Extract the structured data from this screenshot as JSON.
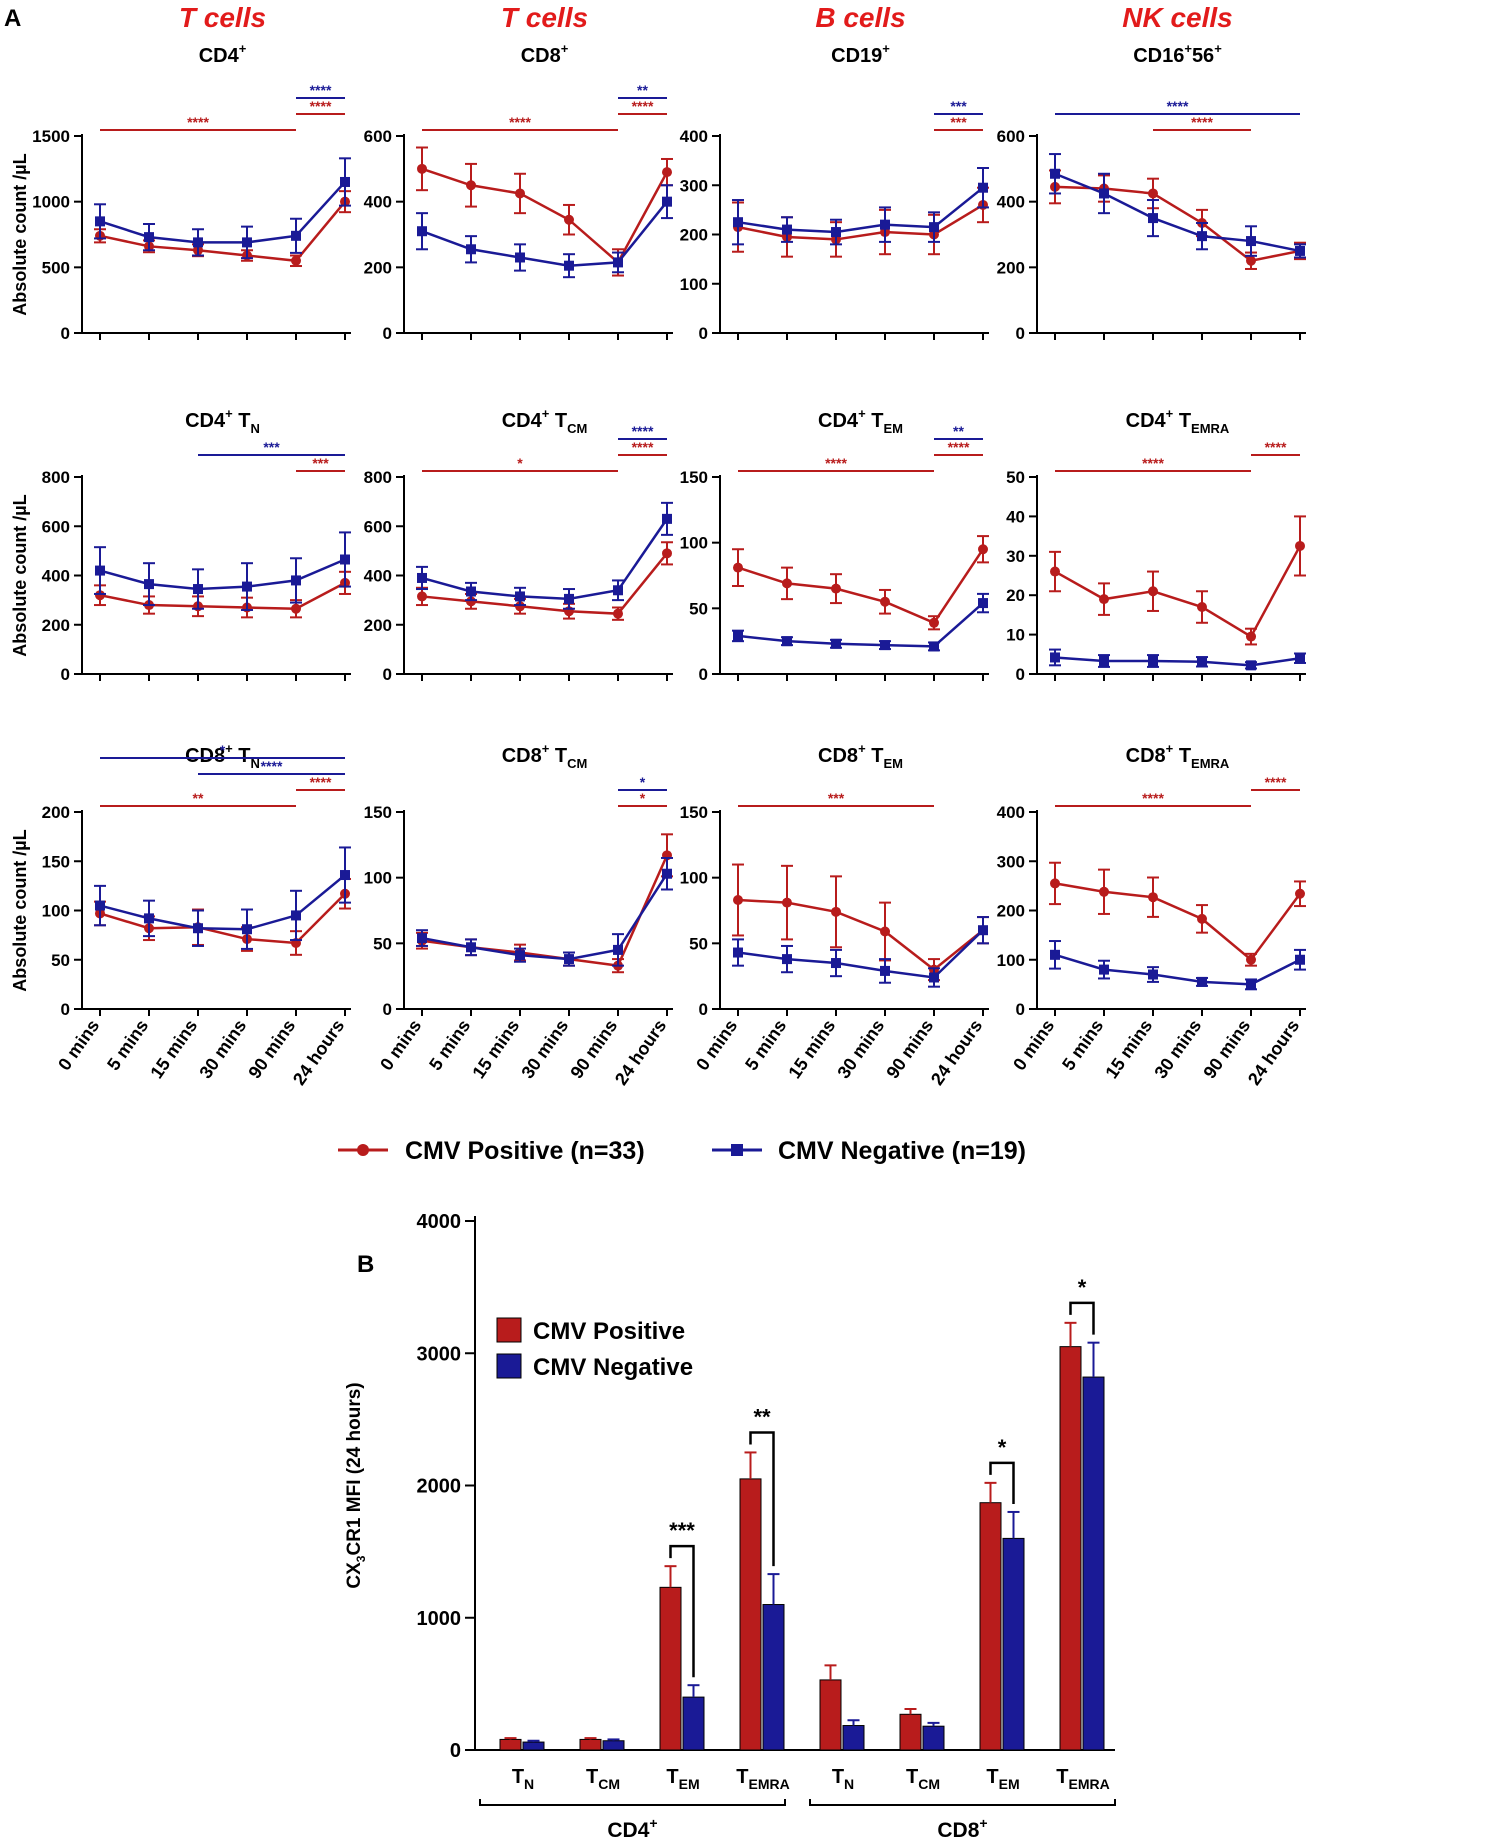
{
  "panel_labels": {
    "a": "A",
    "b": "B"
  },
  "y_axis_label_a": "Absolute count /µL",
  "x_categories": [
    "0 mins",
    "5 mins",
    "15 mins",
    "30 mins",
    "90 mins",
    "24 hours"
  ],
  "legend_a": {
    "positive": "CMV Positive (n=33)",
    "negative": "CMV Negative (n=19)"
  },
  "colors": {
    "positive": "#b81c1c",
    "negative": "#1a1a96",
    "header": "#e21b1b"
  },
  "chart_data": [
    {
      "type": "line",
      "header": "T cells",
      "title": "CD4",
      "sup": "+",
      "sub": "",
      "ylim": [
        0,
        1500
      ],
      "yticks": [
        0,
        500,
        1000,
        1500
      ],
      "showX": false,
      "showYLabel": true,
      "series": [
        {
          "name": "CMV Positive (n=33)",
          "values": [
            740,
            660,
            630,
            590,
            550,
            1000
          ],
          "err": [
            50,
            45,
            45,
            40,
            40,
            80
          ]
        },
        {
          "name": "CMV Negative (n=19)",
          "values": [
            850,
            730,
            690,
            690,
            740,
            1150
          ],
          "err": [
            130,
            100,
            100,
            120,
            130,
            180
          ]
        }
      ],
      "brackets": [
        {
          "from": 0,
          "to": 4,
          "label": "****",
          "color": "positive"
        },
        {
          "from": 4,
          "to": 5,
          "label": "****",
          "color": "positive"
        },
        {
          "from": 4,
          "to": 5,
          "label": "****",
          "color": "negative"
        }
      ]
    },
    {
      "type": "line",
      "header": "T cells",
      "title": "CD8",
      "sup": "+",
      "sub": "",
      "ylim": [
        0,
        600
      ],
      "yticks": [
        0,
        200,
        400,
        600
      ],
      "showX": false,
      "showYLabel": false,
      "series": [
        {
          "name": "CMV Positive (n=33)",
          "values": [
            500,
            450,
            425,
            345,
            215,
            490
          ],
          "err": [
            65,
            65,
            60,
            45,
            40,
            40
          ]
        },
        {
          "name": "CMV Negative (n=19)",
          "values": [
            310,
            255,
            230,
            205,
            215,
            400
          ],
          "err": [
            55,
            40,
            40,
            35,
            30,
            50
          ]
        }
      ],
      "brackets": [
        {
          "from": 0,
          "to": 4,
          "label": "****",
          "color": "positive"
        },
        {
          "from": 4,
          "to": 5,
          "label": "****",
          "color": "positive"
        },
        {
          "from": 4,
          "to": 5,
          "label": "**",
          "color": "negative"
        }
      ]
    },
    {
      "type": "line",
      "header": "B cells",
      "title": "CD19",
      "sup": "+",
      "sub": "",
      "ylim": [
        0,
        400
      ],
      "yticks": [
        0,
        100,
        200,
        300,
        400
      ],
      "showX": false,
      "showYLabel": false,
      "series": [
        {
          "name": "CMV Positive (n=33)",
          "values": [
            215,
            195,
            190,
            205,
            200,
            260
          ],
          "err": [
            50,
            40,
            35,
            45,
            40,
            35
          ]
        },
        {
          "name": "CMV Negative (n=19)",
          "values": [
            225,
            210,
            205,
            220,
            215,
            295
          ],
          "err": [
            45,
            25,
            25,
            35,
            30,
            40
          ]
        }
      ],
      "brackets": [
        {
          "from": 4,
          "to": 5,
          "label": "***",
          "color": "positive"
        },
        {
          "from": 4,
          "to": 5,
          "label": "***",
          "color": "negative"
        }
      ]
    },
    {
      "type": "line",
      "header": "NK cells",
      "title": "CD16",
      "sup": "+",
      "sup2": "56+",
      "sub": "",
      "ylim": [
        0,
        600
      ],
      "yticks": [
        0,
        200,
        400,
        600
      ],
      "showX": false,
      "showYLabel": false,
      "series": [
        {
          "name": "CMV Positive (n=33)",
          "values": [
            445,
            440,
            425,
            335,
            220,
            250
          ],
          "err": [
            50,
            40,
            45,
            40,
            25,
            25
          ]
        },
        {
          "name": "CMV Negative (n=19)",
          "values": [
            485,
            425,
            350,
            295,
            280,
            250
          ],
          "err": [
            60,
            60,
            55,
            40,
            45,
            20
          ]
        }
      ],
      "brackets": [
        {
          "from": 2,
          "to": 4,
          "label": "****",
          "color": "positive"
        },
        {
          "from": 0,
          "to": 5,
          "label": "****",
          "color": "negative"
        }
      ]
    },
    {
      "type": "line",
      "header": "",
      "title": "CD4",
      "sup": "+",
      "sub": "N",
      "ylim": [
        0,
        800
      ],
      "yticks": [
        0,
        200,
        400,
        600,
        800
      ],
      "showX": false,
      "showYLabel": true,
      "series": [
        {
          "name": "CMV Positive (n=33)",
          "values": [
            320,
            280,
            275,
            270,
            265,
            370
          ],
          "err": [
            40,
            35,
            40,
            40,
            35,
            45
          ]
        },
        {
          "name": "CMV Negative (n=19)",
          "values": [
            420,
            365,
            345,
            355,
            380,
            465
          ],
          "err": [
            95,
            85,
            80,
            95,
            90,
            110
          ]
        }
      ],
      "brackets": [
        {
          "from": 4,
          "to": 5,
          "label": "***",
          "color": "positive"
        },
        {
          "from": 2,
          "to": 5,
          "label": "***",
          "color": "negative"
        }
      ]
    },
    {
      "type": "line",
      "header": "",
      "title": "CD4",
      "sup": "+",
      "sub": "CM",
      "ylim": [
        0,
        800
      ],
      "yticks": [
        0,
        200,
        400,
        600,
        800
      ],
      "showX": false,
      "showYLabel": false,
      "series": [
        {
          "name": "CMV Positive (n=33)",
          "values": [
            315,
            295,
            275,
            255,
            245,
            490
          ],
          "err": [
            35,
            30,
            30,
            30,
            25,
            45
          ]
        },
        {
          "name": "CMV Negative (n=19)",
          "values": [
            390,
            335,
            315,
            305,
            340,
            630
          ],
          "err": [
            45,
            35,
            35,
            40,
            40,
            65
          ]
        }
      ],
      "brackets": [
        {
          "from": 0,
          "to": 4,
          "label": "*",
          "color": "positive"
        },
        {
          "from": 4,
          "to": 5,
          "label": "****",
          "color": "positive"
        },
        {
          "from": 4,
          "to": 5,
          "label": "****",
          "color": "negative"
        }
      ]
    },
    {
      "type": "line",
      "header": "",
      "title": "CD4",
      "sup": "+",
      "sub": "EM",
      "ylim": [
        0,
        150
      ],
      "yticks": [
        0,
        50,
        100,
        150
      ],
      "showX": false,
      "showYLabel": false,
      "series": [
        {
          "name": "CMV Positive (n=33)",
          "values": [
            81,
            69,
            65,
            55,
            39,
            95
          ],
          "err": [
            14,
            12,
            11,
            9,
            5,
            10
          ]
        },
        {
          "name": "CMV Negative (n=19)",
          "values": [
            29,
            25,
            23,
            22,
            21,
            54
          ],
          "err": [
            4,
            3,
            3,
            3,
            3,
            7
          ]
        }
      ],
      "brackets": [
        {
          "from": 0,
          "to": 4,
          "label": "****",
          "color": "positive"
        },
        {
          "from": 4,
          "to": 5,
          "label": "****",
          "color": "positive"
        },
        {
          "from": 4,
          "to": 5,
          "label": "**",
          "color": "negative"
        }
      ]
    },
    {
      "type": "line",
      "header": "",
      "title": "CD4",
      "sup": "+",
      "sub": "EMRA",
      "ylim": [
        0,
        50
      ],
      "yticks": [
        0,
        10,
        20,
        30,
        40,
        50
      ],
      "showX": false,
      "showYLabel": false,
      "series": [
        {
          "name": "CMV Positive (n=33)",
          "values": [
            26,
            19,
            21,
            17,
            9.5,
            32.5
          ],
          "err": [
            5,
            4,
            5,
            4,
            2,
            7.5
          ]
        },
        {
          "name": "CMV Negative (n=19)",
          "values": [
            4.2,
            3.3,
            3.3,
            3.1,
            2.2,
            4.0
          ],
          "err": [
            2,
            1.5,
            1.5,
            1.2,
            0.8,
            1.2
          ]
        }
      ],
      "brackets": [
        {
          "from": 0,
          "to": 4,
          "label": "****",
          "color": "positive"
        },
        {
          "from": 4,
          "to": 5,
          "label": "****",
          "color": "positive"
        }
      ]
    },
    {
      "type": "line",
      "header": "",
      "title": "CD8",
      "sup": "+",
      "sub": "N",
      "ylim": [
        0,
        200
      ],
      "yticks": [
        0,
        50,
        100,
        150,
        200
      ],
      "showX": true,
      "showYLabel": true,
      "series": [
        {
          "name": "CMV Positive (n=33)",
          "values": [
            97,
            82,
            83,
            71,
            67,
            117
          ],
          "err": [
            12,
            12,
            18,
            12,
            12,
            15
          ]
        },
        {
          "name": "CMV Negative (n=19)",
          "values": [
            105,
            92,
            82,
            81,
            95,
            136
          ],
          "err": [
            20,
            18,
            18,
            20,
            25,
            28
          ]
        }
      ],
      "brackets": [
        {
          "from": 0,
          "to": 4,
          "label": "**",
          "color": "positive"
        },
        {
          "from": 4,
          "to": 5,
          "label": "****",
          "color": "positive"
        },
        {
          "from": 2,
          "to": 5,
          "label": "****",
          "color": "negative"
        },
        {
          "from": 0,
          "to": 5,
          "label": "*",
          "color": "negative"
        }
      ]
    },
    {
      "type": "line",
      "header": "",
      "title": "CD8",
      "sup": "+",
      "sub": "CM",
      "ylim": [
        0,
        150
      ],
      "yticks": [
        0,
        50,
        100,
        150
      ],
      "showX": true,
      "showYLabel": false,
      "series": [
        {
          "name": "CMV Positive (n=33)",
          "values": [
            52,
            47,
            43,
            38,
            33,
            117
          ],
          "err": [
            6,
            6,
            6,
            5,
            5,
            16
          ]
        },
        {
          "name": "CMV Negative (n=19)",
          "values": [
            54,
            47,
            41,
            38,
            45,
            103
          ],
          "err": [
            6,
            6,
            5,
            5,
            12,
            12
          ]
        }
      ],
      "brackets": [
        {
          "from": 4,
          "to": 5,
          "label": "*",
          "color": "positive"
        },
        {
          "from": 4,
          "to": 5,
          "label": "*",
          "color": "negative"
        }
      ]
    },
    {
      "type": "line",
      "header": "",
      "title": "CD8",
      "sup": "+",
      "sub": "EM",
      "ylim": [
        0,
        150
      ],
      "yticks": [
        0,
        50,
        100,
        150
      ],
      "showX": true,
      "showYLabel": false,
      "series": [
        {
          "name": "CMV Positive (n=33)",
          "values": [
            83,
            81,
            74,
            59,
            30,
            60
          ],
          "err": [
            27,
            28,
            27,
            22,
            8,
            10
          ]
        },
        {
          "name": "CMV Negative (n=19)",
          "values": [
            43,
            38,
            35,
            29,
            24,
            60
          ],
          "err": [
            10,
            10,
            10,
            9,
            7,
            10
          ]
        }
      ],
      "brackets": [
        {
          "from": 0,
          "to": 4,
          "label": "***",
          "color": "positive"
        }
      ]
    },
    {
      "type": "line",
      "header": "",
      "title": "CD8",
      "sup": "+",
      "sub": "EMRA",
      "ylim": [
        0,
        400
      ],
      "yticks": [
        0,
        100,
        200,
        300,
        400
      ],
      "showX": true,
      "showYLabel": false,
      "series": [
        {
          "name": "CMV Positive (n=33)",
          "values": [
            255,
            238,
            227,
            183,
            100,
            234
          ],
          "err": [
            42,
            45,
            40,
            28,
            12,
            25
          ]
        },
        {
          "name": "CMV Negative (n=19)",
          "values": [
            110,
            80,
            70,
            55,
            50,
            100
          ],
          "err": [
            28,
            18,
            15,
            8,
            10,
            20
          ]
        }
      ],
      "brackets": [
        {
          "from": 0,
          "to": 4,
          "label": "****",
          "color": "positive"
        },
        {
          "from": 4,
          "to": 5,
          "label": "****",
          "color": "positive"
        }
      ]
    },
    {
      "type": "bar",
      "title": "B",
      "ylabel": "CX3CR1 MFI (24 hours)",
      "ylim": [
        0,
        4000
      ],
      "yticks": [
        0,
        1000,
        2000,
        3000,
        4000
      ],
      "legend": [
        "CMV Positive",
        "CMV Negative"
      ],
      "groups": [
        {
          "label": "T",
          "sub": "N",
          "pos": 80,
          "neg": 60,
          "pos_err": 10,
          "neg_err": 10
        },
        {
          "label": "T",
          "sub": "CM",
          "pos": 80,
          "neg": 70,
          "pos_err": 10,
          "neg_err": 10
        },
        {
          "label": "T",
          "sub": "EM",
          "pos": 1230,
          "neg": 400,
          "pos_err": 160,
          "neg_err": 90,
          "sig": "***"
        },
        {
          "label": "T",
          "sub": "EMRA",
          "pos": 2050,
          "neg": 1100,
          "pos_err": 200,
          "neg_err": 230,
          "sig": "**"
        },
        {
          "label": "T",
          "sub": "N",
          "pos": 530,
          "neg": 185,
          "pos_err": 110,
          "neg_err": 40
        },
        {
          "label": "T",
          "sub": "CM",
          "pos": 270,
          "neg": 180,
          "pos_err": 40,
          "neg_err": 25
        },
        {
          "label": "T",
          "sub": "EM",
          "pos": 1870,
          "neg": 1600,
          "pos_err": 150,
          "neg_err": 200,
          "sig": "*"
        },
        {
          "label": "T",
          "sub": "EMRA",
          "pos": 3050,
          "neg": 2820,
          "pos_err": 180,
          "neg_err": 260,
          "sig": "*"
        }
      ],
      "group_labels": [
        {
          "text": "CD4",
          "sup": "+"
        },
        {
          "text": "CD8",
          "sup": "+"
        }
      ]
    }
  ]
}
